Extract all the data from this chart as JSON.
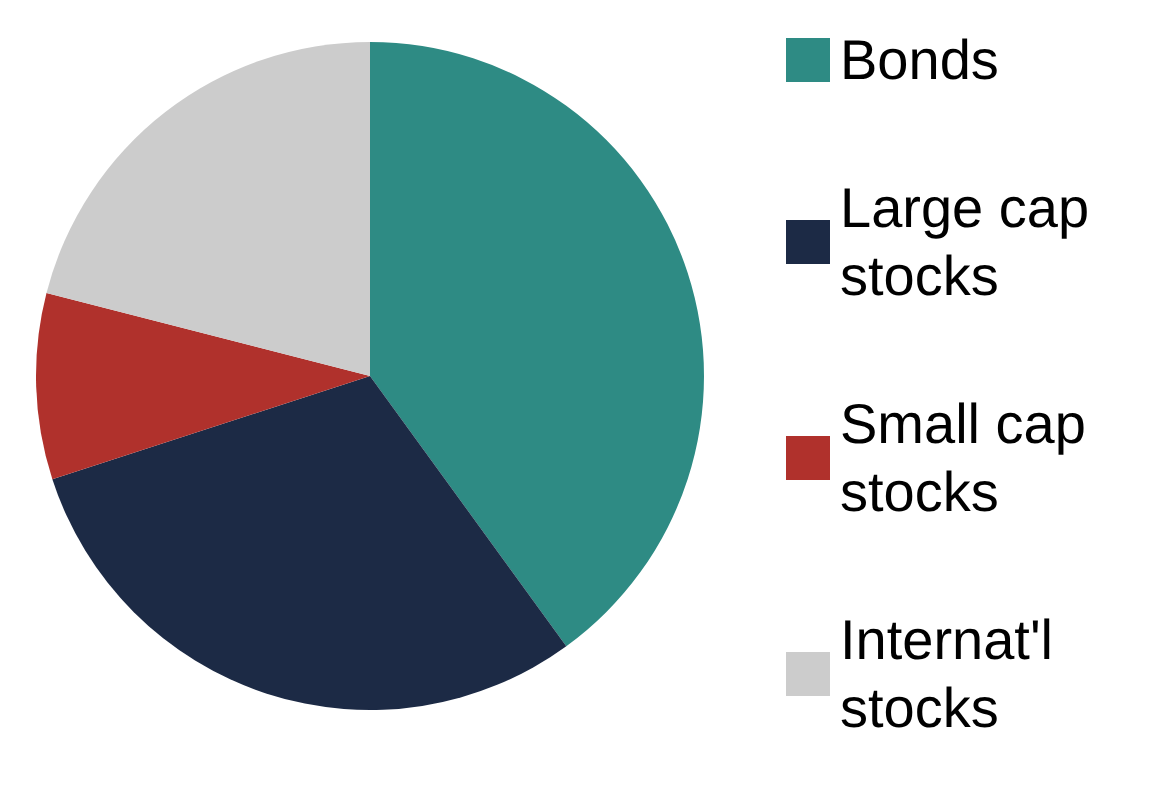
{
  "chart_data": {
    "type": "pie",
    "categories": [
      "Bonds",
      "Large cap stocks",
      "Small cap stocks",
      "Internat'l stocks"
    ],
    "values": [
      40,
      30,
      9,
      21
    ],
    "colors": [
      "#2e8b84",
      "#1c2a45",
      "#b0312c",
      "#cccccc"
    ],
    "legend": "right"
  }
}
